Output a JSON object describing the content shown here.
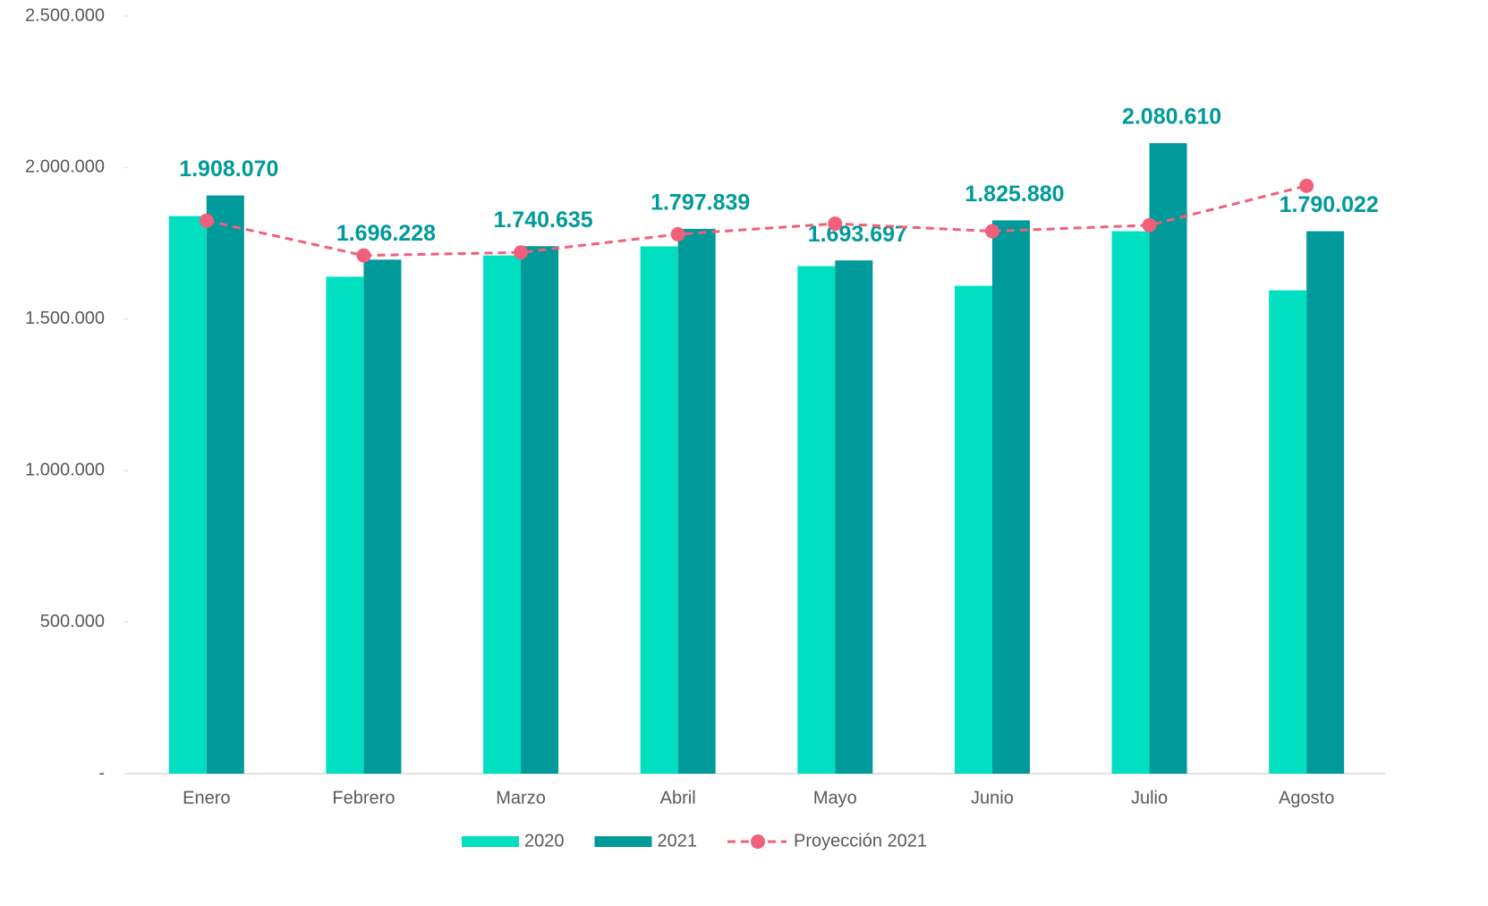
{
  "chart_data": {
    "type": "bar",
    "categories": [
      "Enero",
      "Febrero",
      "Marzo",
      "Abril",
      "Mayo",
      "Junio",
      "Julio",
      "Agosto"
    ],
    "series": [
      {
        "name": "2020",
        "type": "bar",
        "color": "#00e0c0",
        "values": [
          1840000,
          1640000,
          1710000,
          1740000,
          1675000,
          1610000,
          1790000,
          1595000
        ]
      },
      {
        "name": "2021",
        "type": "bar",
        "color": "#009a9a",
        "values": [
          1908070,
          1696228,
          1740635,
          1797839,
          1693697,
          1825880,
          2080610,
          1790022
        ],
        "value_labels": [
          "1.908.070",
          "1.696.228",
          "1.740.635",
          "1.797.839",
          "1.693.697",
          "1.825.880",
          "2.080.610",
          "1.790.022"
        ]
      },
      {
        "name": "Proyección 2021",
        "type": "line",
        "color": "#f0607a",
        "dashed": true,
        "values": [
          1825000,
          1710000,
          1720000,
          1780000,
          1815000,
          1790000,
          1810000,
          1940000
        ]
      }
    ],
    "ylim": [
      0,
      2500000
    ],
    "yticks": [
      {
        "value": 0,
        "label": "-"
      },
      {
        "value": 500000,
        "label": "500.000"
      },
      {
        "value": 1000000,
        "label": "1.000.000"
      },
      {
        "value": 1500000,
        "label": "1.500.000"
      },
      {
        "value": 2000000,
        "label": "2.000.000"
      },
      {
        "value": 2500000,
        "label": "2.500.000"
      }
    ],
    "grid": false,
    "legend": "bottom"
  }
}
